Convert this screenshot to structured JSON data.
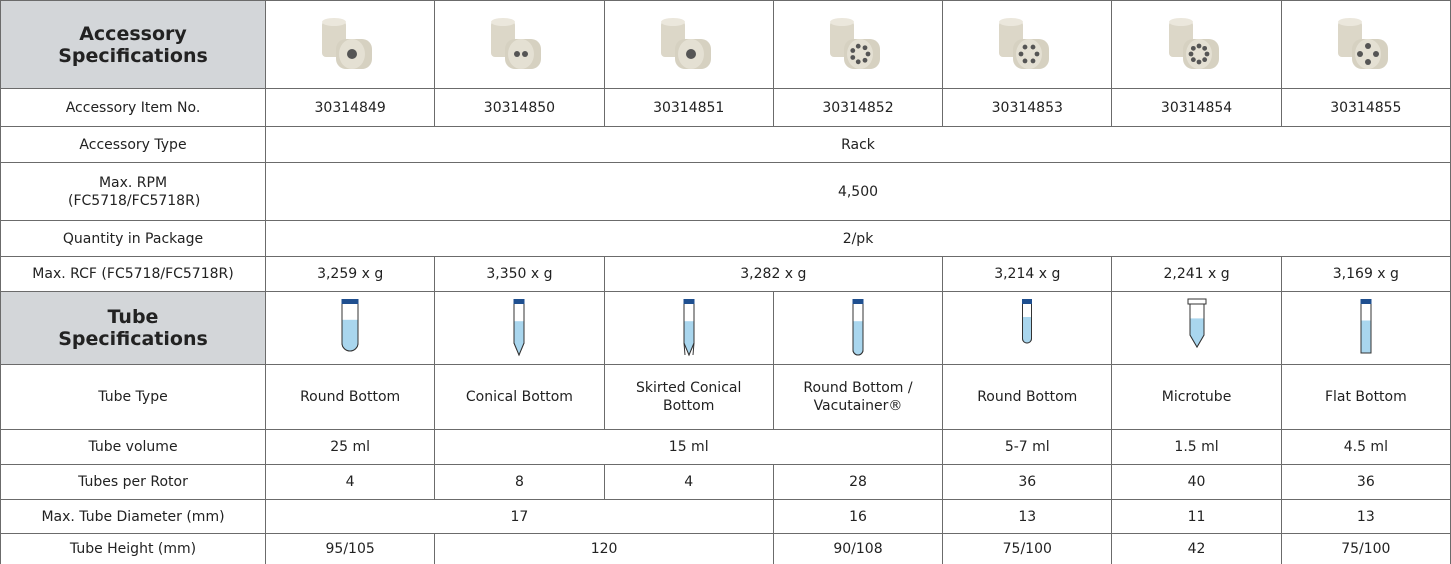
{
  "accessory": {
    "title": "Accessory Specifications",
    "rows": [
      {
        "label": "Accessory Item No.",
        "cells": [
          "30314849",
          "30314850",
          "30314851",
          "30314852",
          "30314853",
          "30314854",
          "30314855"
        ]
      },
      {
        "label": "Accessory Type",
        "cells": [
          "Rack"
        ]
      },
      {
        "label": "Max. RPM (FC5718/FC5718R)",
        "cells": [
          "4,500"
        ]
      },
      {
        "label": "Quantity in Package",
        "cells": [
          "2/pk"
        ]
      },
      {
        "label": "Max. RCF (FC5718/FC5718R)",
        "cells": [
          "3,259 x g",
          "3,350 x g",
          "3,282 x g",
          "3,214 x g",
          "2,241 x g",
          "3,169 x g"
        ]
      }
    ]
  },
  "tube": {
    "title": "Tube Specifications",
    "rows": [
      {
        "label": "Tube Type",
        "cells": [
          "Round Bottom",
          "Conical Bottom",
          "Skirted Conical Bottom",
          "Round Bottom / Vacutainer®",
          "Round Bottom",
          "Microtube",
          "Flat Bottom"
        ]
      },
      {
        "label": "Tube volume",
        "cells": [
          "25 ml",
          "15 ml",
          "5-7 ml",
          "1.5 ml",
          "4.5 ml"
        ]
      },
      {
        "label": "Tubes per Rotor",
        "cells": [
          "4",
          "8",
          "4",
          "28",
          "36",
          "40",
          "36"
        ]
      },
      {
        "label": "Max. Tube Diameter (mm)",
        "cells": [
          "17",
          "16",
          "13",
          "11",
          "13"
        ]
      },
      {
        "label": "Tube Height (mm)",
        "cells": [
          "95/105",
          "120",
          "90/108",
          "75/100",
          "42",
          "75/100"
        ]
      }
    ]
  }
}
